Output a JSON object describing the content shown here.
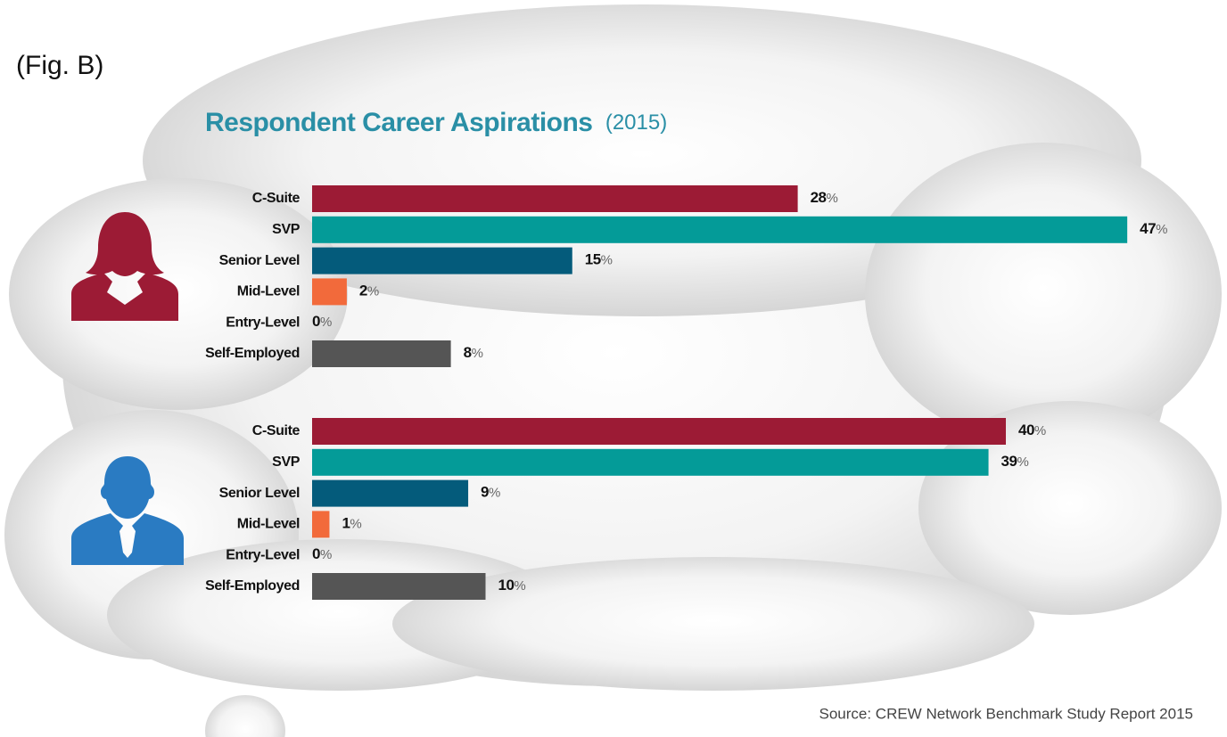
{
  "figure_label": "(Fig. B)",
  "title": "Respondent Career Aspirations",
  "subtitle": "(2015)",
  "source": "Source: CREW Network Benchmark Study Report 2015",
  "chart_data": [
    {
      "type": "bar",
      "orientation": "horizontal",
      "unit": "%",
      "categories": [
        "C-Suite",
        "SVP",
        "Senior Level",
        "Mid-Level",
        "Entry-Level",
        "Self-Employed"
      ],
      "values": [
        28,
        47,
        15,
        2,
        0,
        8
      ],
      "colors": [
        "#9c1b35",
        "#049b98",
        "#045b7b",
        "#f26a3b",
        "#555555",
        "#555555"
      ]
    },
    {
      "type": "bar",
      "orientation": "horizontal",
      "unit": "%",
      "categories": [
        "C-Suite",
        "SVP",
        "Senior Level",
        "Mid-Level",
        "Entry-Level",
        "Self-Employed"
      ],
      "values": [
        40,
        39,
        9,
        1,
        0,
        10
      ],
      "colors": [
        "#9c1b35",
        "#049b98",
        "#045b7b",
        "#f26a3b",
        "#555555",
        "#555555"
      ]
    }
  ]
}
